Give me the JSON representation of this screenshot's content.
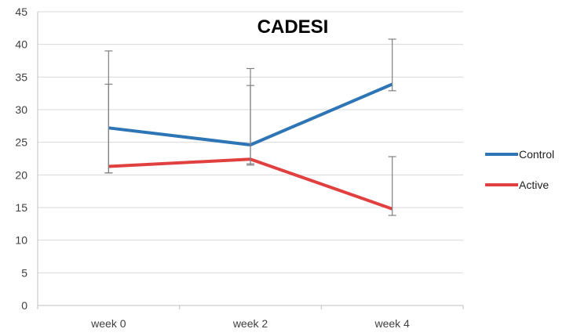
{
  "chart_data": {
    "type": "line",
    "title": "CADESI",
    "xlabel": "",
    "ylabel": "",
    "categories": [
      "week 0",
      "week 2",
      "week 4"
    ],
    "ylim": [
      0,
      45
    ],
    "y_ticks": [
      "0",
      "5",
      "10",
      "15",
      "20",
      "25",
      "30",
      "35",
      "40",
      "45"
    ],
    "grid": "horizontal",
    "legend_position": "right",
    "series": [
      {
        "name": "Control",
        "color": "#2e75b6",
        "values": [
          27.2,
          24.6,
          33.9
        ],
        "error_low": [
          20.3,
          21.7,
          32.9
        ],
        "error_high": [
          33.9,
          33.7,
          40.8
        ]
      },
      {
        "name": "Active",
        "color": "#e0403f",
        "values": [
          21.3,
          22.4,
          14.8
        ],
        "error_low": [
          20.3,
          21.5,
          13.8
        ],
        "error_high": [
          39.0,
          36.3,
          22.8
        ]
      }
    ]
  }
}
